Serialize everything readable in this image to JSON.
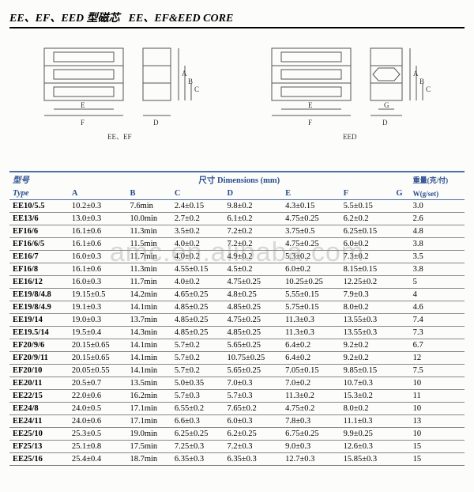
{
  "title_cn": "EE、EF、EED 型磁芯",
  "title_en": "EE、EF&EED  CORE",
  "diagram_labels": {
    "left": "EE、EF",
    "right": "EED"
  },
  "headers": {
    "type_cn": "型号",
    "type_en": "Type",
    "dim_cn": "尺寸",
    "dim_en": "Dimensions (mm)",
    "weight_cn": "重量(克/付)",
    "weight_en": "W(g/set)",
    "cols": [
      "A",
      "B",
      "C",
      "D",
      "E",
      "F",
      "G"
    ]
  },
  "rows": [
    {
      "type": "EE10/5.5",
      "A": "10.2±0.3",
      "B": "7.6min",
      "C": "2.4±0.15",
      "D": "9.8±0.2",
      "E": "4.3±0.15",
      "F": "5.5±0.15",
      "G": "",
      "W": "3.0"
    },
    {
      "type": "EE13/6",
      "A": "13.0±0.3",
      "B": "10.0min",
      "C": "2.7±0.2",
      "D": "6.1±0.2",
      "E": "4.75±0.25",
      "F": "6.2±0.2",
      "G": "",
      "W": "2.6"
    },
    {
      "type": "EF16/6",
      "A": "16.1±0.6",
      "B": "11.3min",
      "C": "3.5±0.2",
      "D": "7.2±0.2",
      "E": "3.75±0.5",
      "F": "6.25±0.15",
      "G": "",
      "W": "4.8"
    },
    {
      "type": "EF16/6/5",
      "A": "16.1±0.6",
      "B": "11.5min",
      "C": "4.0±0.2",
      "D": "7.2±0.2",
      "E": "4.75±0.25",
      "F": "6.0±0.2",
      "G": "",
      "W": "3.8"
    },
    {
      "type": "EE16/7",
      "A": "16.0±0.3",
      "B": "11.7min",
      "C": "4.0±0.2",
      "D": "4.9±0.2",
      "E": "5.3±0.2",
      "F": "7.3±0.2",
      "G": "",
      "W": "3.5"
    },
    {
      "type": "EF16/8",
      "A": "16.1±0.6",
      "B": "11.3min",
      "C": "4.55±0.15",
      "D": "4.5±0.2",
      "E": "6.0±0.2",
      "F": "8.15±0.15",
      "G": "",
      "W": "3.8"
    },
    {
      "type": "EE16/12",
      "A": "16.0±0.3",
      "B": "11.7min",
      "C": "4.0±0.2",
      "D": "4.75±0.25",
      "E": "10.25±0.25",
      "F": "12.25±0.2",
      "G": "",
      "W": "5"
    },
    {
      "type": "EE19/8/4.8",
      "A": "19.15±0.5",
      "B": "14.2min",
      "C": "4.65±0.25",
      "D": "4.8±0.25",
      "E": "5.55±0.15",
      "F": "7.9±0.3",
      "G": "",
      "W": "4"
    },
    {
      "type": "EE19/8/4.9",
      "A": "19.1±0.3",
      "B": "14.1min",
      "C": "4.85±0.25",
      "D": "4.85±0.25",
      "E": "5.75±0.15",
      "F": "8.0±0.2",
      "G": "",
      "W": "4.6"
    },
    {
      "type": "EE19/14",
      "A": "19.0±0.3",
      "B": "13.7min",
      "C": "4.85±0.25",
      "D": "4.75±0.25",
      "E": "11.3±0.3",
      "F": "13.55±0.3",
      "G": "",
      "W": "7.4"
    },
    {
      "type": "EE19.5/14",
      "A": "19.5±0.4",
      "B": "14.3min",
      "C": "4.85±0.25",
      "D": "4.85±0.25",
      "E": "11.3±0.3",
      "F": "13.55±0.3",
      "G": "",
      "W": "7.3"
    },
    {
      "type": "EF20/9/6",
      "A": "20.15±0.65",
      "B": "14.1min",
      "C": "5.7±0.2",
      "D": "5.65±0.25",
      "E": "6.4±0.2",
      "F": "9.2±0.2",
      "G": "",
      "W": "6.7"
    },
    {
      "type": "EF20/9/11",
      "A": "20.15±0.65",
      "B": "14.1min",
      "C": "5.7±0.2",
      "D": "10.75±0.25",
      "E": "6.4±0.2",
      "F": "9.2±0.2",
      "G": "",
      "W": "12"
    },
    {
      "type": "EF20/10",
      "A": "20.05±0.55",
      "B": "14.1min",
      "C": "5.7±0.2",
      "D": "5.65±0.25",
      "E": "7.05±0.15",
      "F": "9.85±0.15",
      "G": "",
      "W": "7.5"
    },
    {
      "type": "EE20/11",
      "A": "20.5±0.7",
      "B": "13.5min",
      "C": "5.0±0.35",
      "D": "7.0±0.3",
      "E": "7.0±0.2",
      "F": "10.7±0.3",
      "G": "",
      "W": "10"
    },
    {
      "type": "EE22/15",
      "A": "22.0±0.6",
      "B": "16.2min",
      "C": "5.7±0.3",
      "D": "5.7±0.3",
      "E": "11.3±0.2",
      "F": "15.3±0.2",
      "G": "",
      "W": "11"
    },
    {
      "type": "EE24/8",
      "A": "24.0±0.5",
      "B": "17.1min",
      "C": "6.55±0.2",
      "D": "7.65±0.2",
      "E": "4.75±0.2",
      "F": "8.0±0.2",
      "G": "",
      "W": "10"
    },
    {
      "type": "EE24/11",
      "A": "24.0±0.6",
      "B": "17.1min",
      "C": "6.6±0.3",
      "D": "6.0±0.3",
      "E": "7.8±0.3",
      "F": "11.1±0.3",
      "G": "",
      "W": "13"
    },
    {
      "type": "EE25/10",
      "A": "25.3±0.5",
      "B": "19.0min",
      "C": "6.25±0.25",
      "D": "6.2±0.25",
      "E": "6.75±0.25",
      "F": "9.9±0.25",
      "G": "",
      "W": "10"
    },
    {
      "type": "EF25/13",
      "A": "25.1±0.8",
      "B": "17.5min",
      "C": "7.25±0.3",
      "D": "7.2±0.3",
      "E": "9.0±0.3",
      "F": "12.6±0.3",
      "G": "",
      "W": "15"
    },
    {
      "type": "EE25/16",
      "A": "25.4±0.4",
      "B": "18.7min",
      "C": "6.35±0.3",
      "D": "6.35±0.3",
      "E": "12.7±0.3",
      "F": "15.85±0.3",
      "G": "",
      "W": "15"
    }
  ],
  "watermark": "amc.en.alibaba.com",
  "colors": {
    "header_blue": "#2a4d8f",
    "rule_blue": "#4a6fa5",
    "rule_grey": "#888888"
  }
}
